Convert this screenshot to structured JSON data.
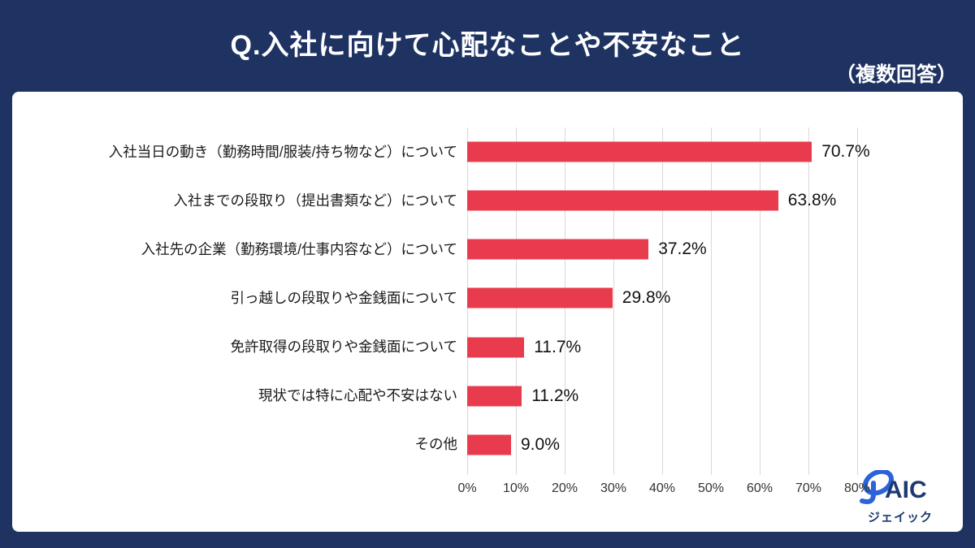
{
  "header": {
    "title": "Q.入社に向けて心配なことや不安なこと",
    "note": "（複数回答）"
  },
  "chart_data": {
    "type": "bar",
    "orientation": "horizontal",
    "title": "Q.入社に向けて心配なことや不安なこと",
    "note": "複数回答",
    "categories": [
      "入社当日の動き（勤務時間/服装/持ち物など）について",
      "入社までの段取り（提出書類など）について",
      "入社先の企業（勤務環境/仕事内容など）について",
      "引っ越しの段取りや金銭面について",
      "免許取得の段取りや金銭面について",
      "現状では特に心配や不安はない",
      "その他"
    ],
    "values": [
      70.7,
      63.8,
      37.2,
      29.8,
      11.7,
      11.2,
      9.0
    ],
    "value_labels": [
      "70.7%",
      "63.8%",
      "37.2%",
      "29.8%",
      "11.7%",
      "11.2%",
      "9.0%"
    ],
    "x_ticks": [
      "0%",
      "10%",
      "20%",
      "30%",
      "40%",
      "50%",
      "60%",
      "70%",
      "80%"
    ],
    "xlim": [
      0,
      80
    ],
    "grid": true,
    "legend": "none",
    "bar_color": "#e83c4e"
  },
  "logo": {
    "text": "JAIC",
    "subtext": "ジェイック"
  },
  "colors": {
    "background": "#1f3363",
    "card": "#ffffff",
    "bar": "#e83c4e",
    "grid": "#d9d9d9",
    "title_text": "#ffffff",
    "label_text": "#1a1a1a",
    "logo_blue": "#2b63d9",
    "logo_navy": "#1d3a70"
  }
}
